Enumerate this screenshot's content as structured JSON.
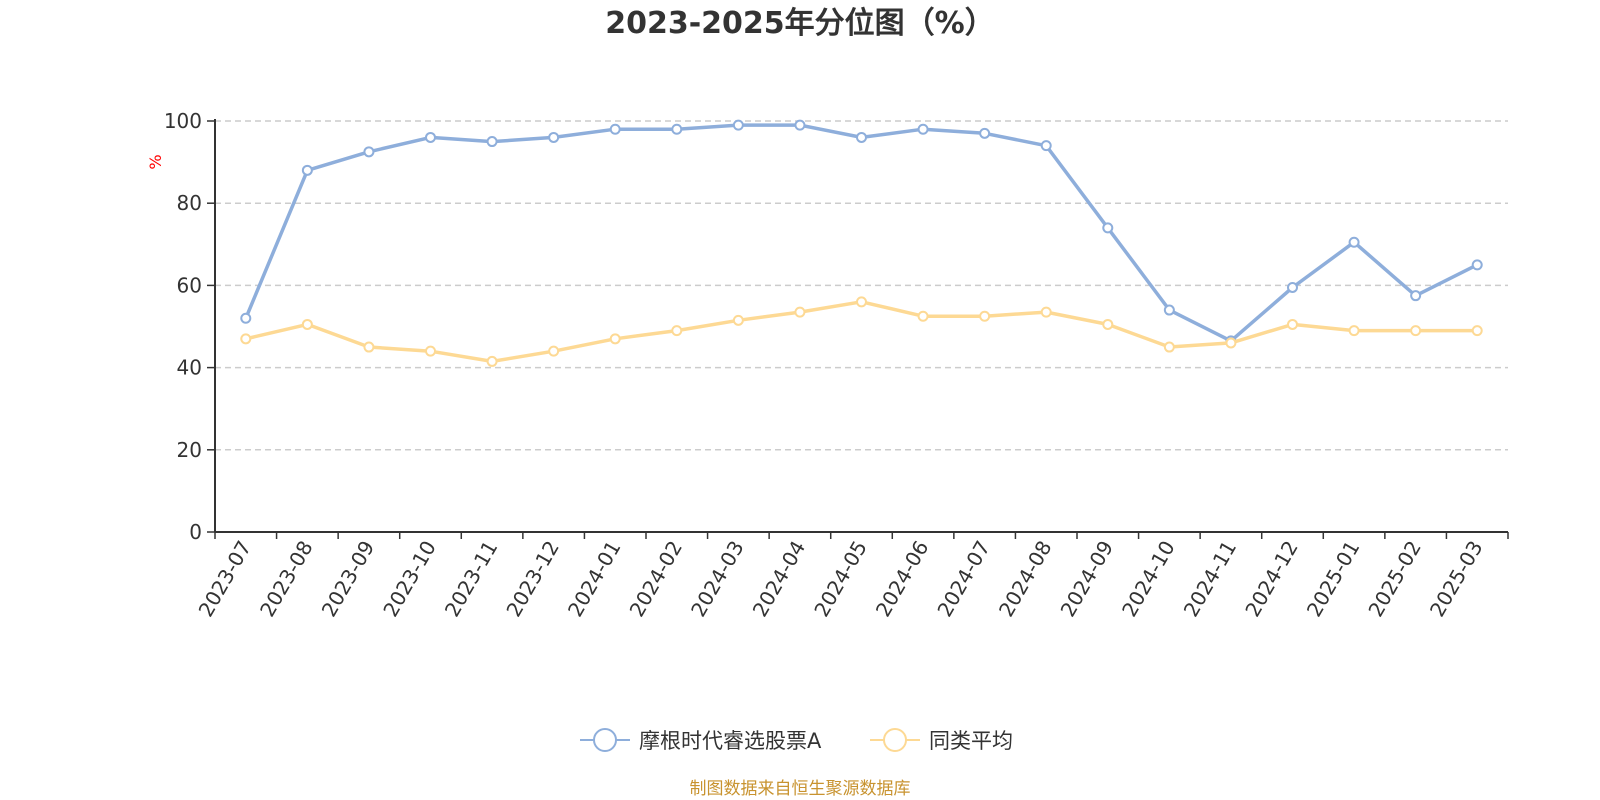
{
  "chart_data": {
    "type": "line",
    "title": "2023-2025年分位图（%）",
    "ylabel": "%",
    "ylim": [
      0,
      100
    ],
    "yticks": [
      0,
      20,
      40,
      60,
      80,
      100
    ],
    "grid": true,
    "legend_position": "bottom-center",
    "categories": [
      "2023-07",
      "2023-08",
      "2023-09",
      "2023-10",
      "2023-11",
      "2023-12",
      "2024-01",
      "2024-02",
      "2024-03",
      "2024-04",
      "2024-05",
      "2024-06",
      "2024-07",
      "2024-08",
      "2024-09",
      "2024-10",
      "2024-11",
      "2024-12",
      "2025-01",
      "2025-02",
      "2025-03"
    ],
    "series": [
      {
        "name": "摩根时代睿选股票A",
        "color": "#8eaedb",
        "values": [
          52,
          88,
          92.5,
          96,
          95,
          96,
          98,
          98,
          99,
          99,
          96,
          98,
          97,
          94,
          74,
          54,
          46.5,
          59.5,
          70.5,
          57.5,
          65
        ]
      },
      {
        "name": "同类平均",
        "color": "#fdd994",
        "values": [
          47,
          50.5,
          45,
          44,
          41.5,
          44,
          47,
          49,
          51.5,
          53.5,
          56,
          52.5,
          52.5,
          53.5,
          50.5,
          45,
          46,
          50.5,
          49,
          49,
          49
        ]
      }
    ],
    "source": "制图数据来自恒生聚源数据库"
  }
}
